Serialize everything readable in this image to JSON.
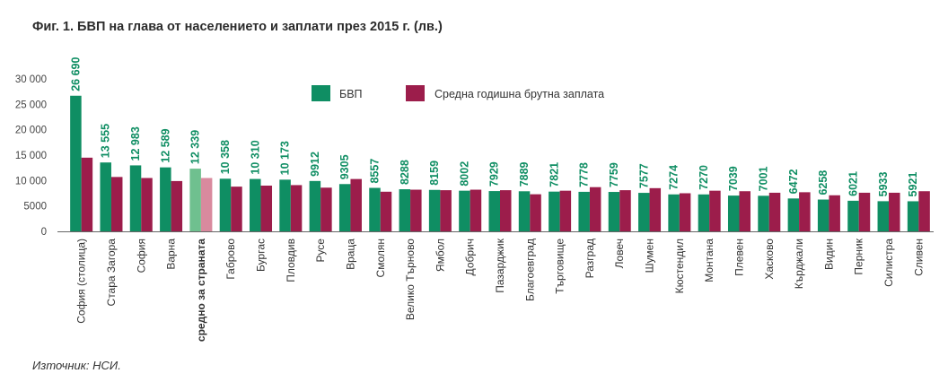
{
  "title": "Фиг. 1. БВП на глава от населението и заплати през 2015 г.  (лв.)",
  "source": "Източник: НСИ.",
  "colors": {
    "gdp": "#0f8e63",
    "wage": "#9c1d4b",
    "gdp_highlight": "#6fc08f",
    "wage_highlight": "#d98a9e",
    "label_text": "#0f8e63"
  },
  "chart_data": {
    "type": "bar",
    "ylim": [
      0,
      30000
    ],
    "yticks": [
      "0",
      "5000",
      "10 000",
      "15 000",
      "20 000",
      "25 000",
      "30 000"
    ],
    "highlight_category": "средно за страната",
    "legend_position": "top-center",
    "categories": [
      "София (столица)",
      "Стара Загора",
      "София",
      "Варна",
      "средно за страната",
      "Габрово",
      "Бургас",
      "Пловдив",
      "Русе",
      "Враца",
      "Смолян",
      "Велико Търново",
      "Ямбол",
      "Добрич",
      "Пазарджик",
      "Благоевград",
      "Търговище",
      "Разград",
      "Ловеч",
      "Шумен",
      "Кюстендил",
      "Монтана",
      "Плевен",
      "Хасково",
      "Кърджали",
      "Видин",
      "Перник",
      "Силистра",
      "Сливен"
    ],
    "series": [
      {
        "name": "БВП",
        "values": [
          26690,
          13555,
          12983,
          12589,
          12339,
          10358,
          10310,
          10173,
          9912,
          9305,
          8557,
          8288,
          8159,
          8002,
          7929,
          7889,
          7821,
          7778,
          7759,
          7577,
          7274,
          7270,
          7039,
          7001,
          6472,
          6258,
          6021,
          5933,
          5921
        ],
        "labels": [
          "26 690",
          "13 555",
          "12 983",
          "12 589",
          "12 339",
          "10 358",
          "10 310",
          "10 173",
          "9912",
          "9305",
          "8557",
          "8288",
          "8159",
          "8002",
          "7929",
          "7889",
          "7821",
          "7778",
          "7759",
          "7577",
          "7274",
          "7270",
          "7039",
          "7001",
          "6472",
          "6258",
          "6021",
          "5933",
          "5921"
        ]
      },
      {
        "name": "Средна годишна брутна заплата",
        "values": [
          14500,
          10700,
          10500,
          9900,
          10500,
          8800,
          9000,
          9100,
          8600,
          10300,
          7800,
          8200,
          8100,
          8200,
          8100,
          7300,
          8000,
          8700,
          8100,
          8500,
          7500,
          8000,
          7900,
          7600,
          7700,
          7100,
          7600,
          7600,
          7900
        ]
      }
    ]
  }
}
